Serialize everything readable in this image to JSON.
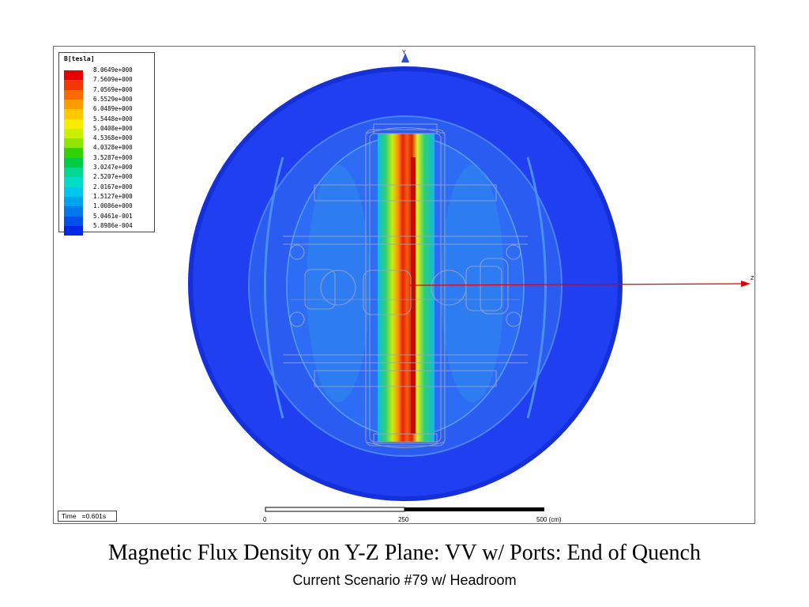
{
  "legend": {
    "title": "B[tesla]",
    "entries": [
      {
        "value": "8.0649e+000",
        "color": "#e60000"
      },
      {
        "value": "7.5609e+000",
        "color": "#f23800"
      },
      {
        "value": "7.0569e+000",
        "color": "#fb6a00"
      },
      {
        "value": "6.5529e+000",
        "color": "#ff9a00"
      },
      {
        "value": "6.0489e+000",
        "color": "#ffc800"
      },
      {
        "value": "5.5448e+000",
        "color": "#f6ee00"
      },
      {
        "value": "5.0408e+000",
        "color": "#c8f000"
      },
      {
        "value": "4.5368e+000",
        "color": "#8ee600"
      },
      {
        "value": "4.0328e+000",
        "color": "#32d200"
      },
      {
        "value": "3.5287e+000",
        "color": "#00cc46"
      },
      {
        "value": "3.0247e+000",
        "color": "#00d890"
      },
      {
        "value": "2.5207e+000",
        "color": "#00dcc8"
      },
      {
        "value": "2.0167e+000",
        "color": "#00c6ee"
      },
      {
        "value": "1.5127e+000",
        "color": "#00a2f2"
      },
      {
        "value": "1.0086e+000",
        "color": "#0078ee"
      },
      {
        "value": "5.0461e-001",
        "color": "#0050ea"
      },
      {
        "value": "5.8986e-004",
        "color": "#0028e6"
      }
    ]
  },
  "time": {
    "label": "Time",
    "value": "=0.601s"
  },
  "scale_bar": {
    "label_start": "0",
    "label_mid": "250",
    "label_end": "500 (cm)"
  },
  "axes": {
    "y_label": "Y",
    "z_label": "Z",
    "axis_color": "#e00000"
  },
  "field_colors": {
    "outer": "#1f3ff0",
    "inner_glow": "#2a6ef2",
    "core_red": "#e8200a"
  },
  "caption": "Magnetic Flux Density on Y-Z Plane: VV w/ Ports: End of Quench",
  "subcaption": "Current Scenario #79 w/ Headroom"
}
